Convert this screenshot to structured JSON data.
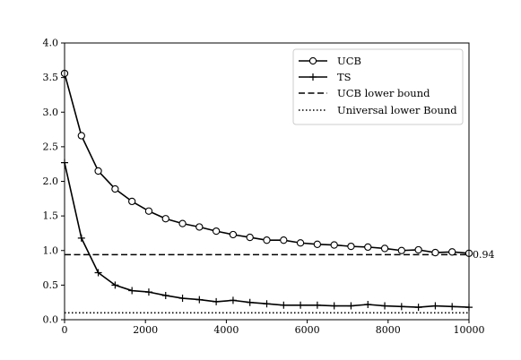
{
  "chart_data": {
    "type": "line",
    "title": "",
    "xlabel": "",
    "ylabel": "",
    "xlim": [
      0,
      10000
    ],
    "ylim": [
      0,
      4.0
    ],
    "grid": false,
    "legend_position": "top-right",
    "x_ticks": [
      "0",
      "2000",
      "4000",
      "6000",
      "8000",
      "10000"
    ],
    "y_ticks": [
      "0.0",
      "0.5",
      "1.0",
      "1.5",
      "2.0",
      "2.5",
      "3.0",
      "3.5",
      "4.0"
    ],
    "x": [
      0,
      417,
      833,
      1250,
      1667,
      2083,
      2500,
      2917,
      3333,
      3750,
      4167,
      4583,
      5000,
      5417,
      5833,
      6250,
      6667,
      7083,
      7500,
      7917,
      8333,
      8750,
      9167,
      9583,
      10000
    ],
    "series": [
      {
        "name": "UCB",
        "marker": "circle",
        "style": "solid",
        "values": [
          3.56,
          2.66,
          2.15,
          1.89,
          1.71,
          1.57,
          1.46,
          1.39,
          1.34,
          1.28,
          1.23,
          1.19,
          1.15,
          1.15,
          1.11,
          1.09,
          1.08,
          1.06,
          1.05,
          1.03,
          1.0,
          1.01,
          0.97,
          0.98,
          0.96
        ]
      },
      {
        "name": "TS",
        "marker": "plus",
        "style": "solid",
        "values": [
          2.27,
          1.18,
          0.68,
          0.5,
          0.42,
          0.4,
          0.35,
          0.31,
          0.29,
          0.26,
          0.28,
          0.25,
          0.23,
          0.21,
          0.21,
          0.21,
          0.2,
          0.2,
          0.22,
          0.2,
          0.19,
          0.18,
          0.2,
          0.19,
          0.18
        ]
      }
    ],
    "reference_lines": [
      {
        "name": "UCB lower bound",
        "y": 0.94,
        "style": "dashed"
      },
      {
        "name": "Universal lower Bound",
        "y": 0.1,
        "style": "dotted"
      }
    ],
    "annotation": {
      "text": "0.94",
      "y": 0.94
    }
  }
}
